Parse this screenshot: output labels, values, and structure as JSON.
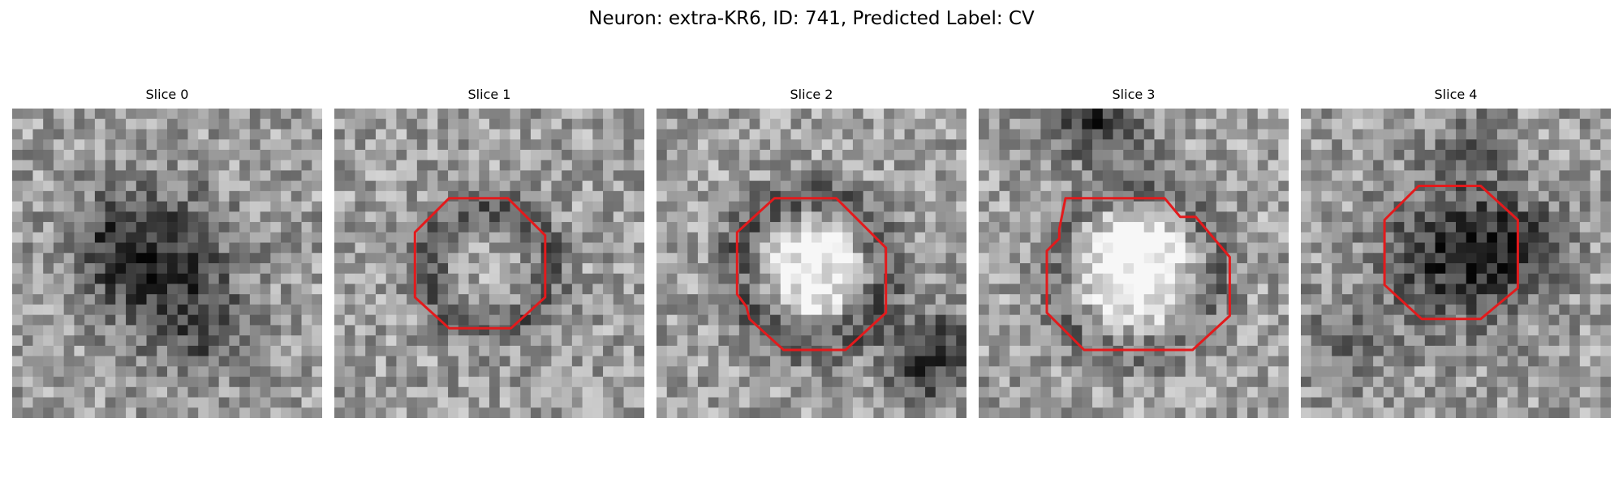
{
  "figure": {
    "title": "Neuron: extra-KR6, ID: 741, Predicted Label: CV"
  },
  "panels": [
    {
      "title": "Slice 0",
      "has_outline": false,
      "pattern": "dark-blob"
    },
    {
      "title": "Slice 1",
      "has_outline": true,
      "pattern": "faint-ring"
    },
    {
      "title": "Slice 2",
      "has_outline": true,
      "pattern": "bright-core-dark-ring"
    },
    {
      "title": "Slice 3",
      "has_outline": true,
      "pattern": "bright-core-dark-ring"
    },
    {
      "title": "Slice 4",
      "has_outline": true,
      "pattern": "dark-core"
    }
  ],
  "style": {
    "outline_color": "#e31a1c",
    "colormap": "grayscale"
  }
}
